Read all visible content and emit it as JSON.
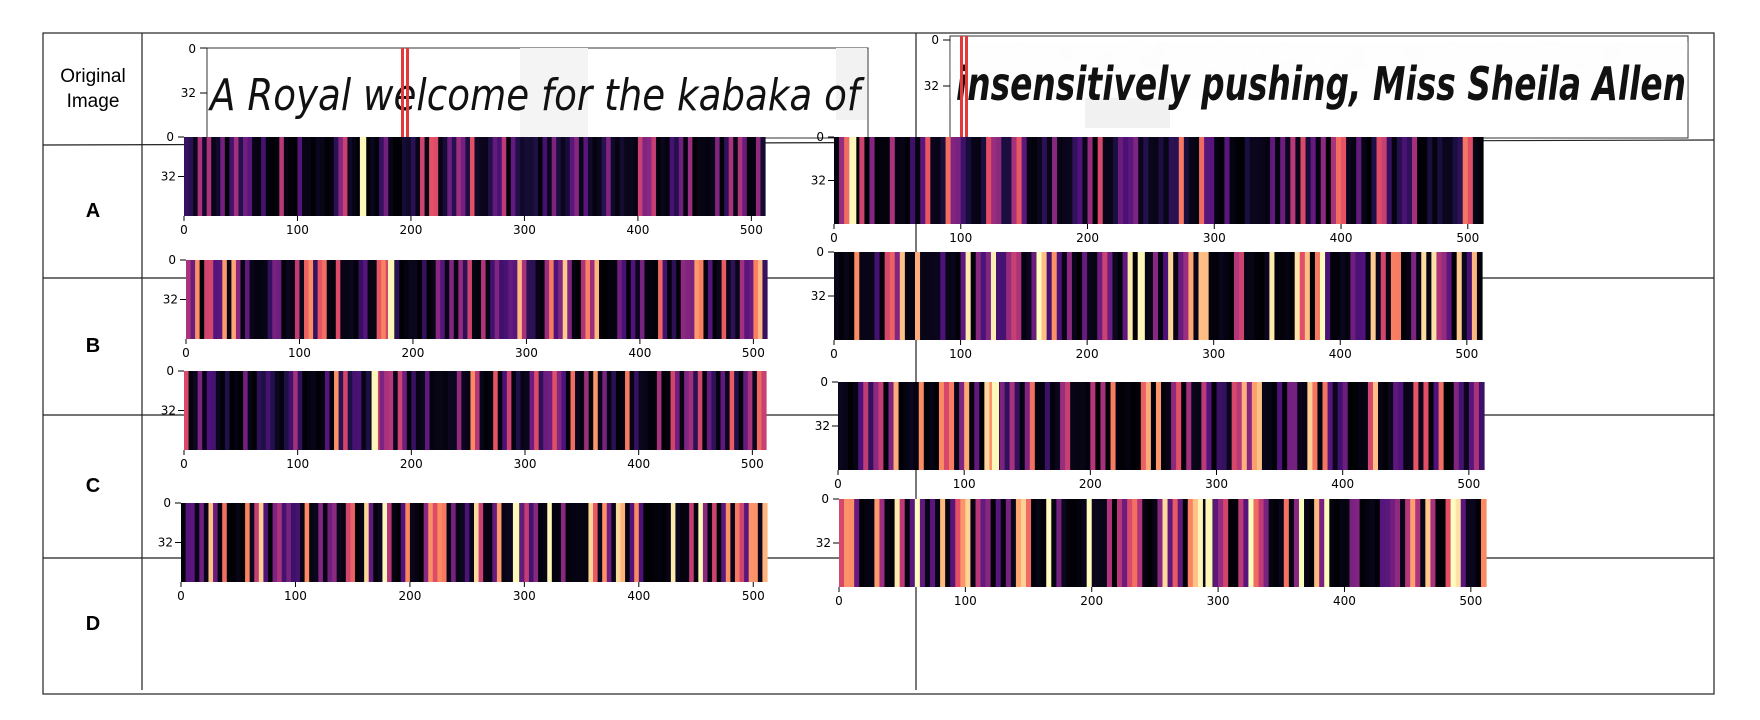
{
  "rows": [
    {
      "label_line1": "Original",
      "label_line2": "Image"
    },
    {
      "label": "A"
    },
    {
      "label": "B"
    },
    {
      "label": "C"
    },
    {
      "label": "D"
    }
  ],
  "original_image": {
    "left_text": "A Royal welcome for the kabaka of",
    "right_text": "insensitively pushing, Miss Sheila Allen",
    "y_ticks": [
      "0",
      "32"
    ]
  },
  "heatmap_axes": {
    "x_ticks": [
      0,
      100,
      200,
      300,
      400,
      500
    ],
    "x_tick_labels": [
      "0",
      "100",
      "200",
      "300",
      "400",
      "500"
    ],
    "y_tick_labels": [
      "0",
      "32"
    ],
    "x_range": [
      0,
      512
    ]
  },
  "colors": {
    "border": "#222222",
    "ink": "#111111",
    "highlight": "#e23a3a",
    "colormap": "magma"
  },
  "chart_data": [
    {
      "type": "heatmap",
      "panel": "A-left",
      "x": [
        0,
        512
      ],
      "peak_x": [
        155
      ]
    },
    {
      "type": "heatmap",
      "panel": "A-right",
      "x": [
        0,
        512
      ],
      "peak_x": [
        12
      ]
    },
    {
      "type": "heatmap",
      "panel": "B-left",
      "x": [
        0,
        512
      ],
      "peak_x": [
        178
      ]
    },
    {
      "type": "heatmap",
      "panel": "B-right",
      "x": [
        0,
        512
      ],
      "peak_x": [
        240
      ]
    },
    {
      "type": "heatmap",
      "panel": "C-left",
      "x": [
        0,
        512
      ],
      "peak_x": [
        165
      ]
    },
    {
      "type": "heatmap",
      "panel": "C-right",
      "x": [
        0,
        512
      ],
      "peak_x": [
        122
      ]
    },
    {
      "type": "heatmap",
      "panel": "D-left",
      "x": [
        0,
        512
      ],
      "peak_x": [
        290
      ]
    },
    {
      "type": "heatmap",
      "panel": "D-right",
      "x": [
        0,
        512
      ],
      "peak_x": [
        290
      ]
    }
  ]
}
